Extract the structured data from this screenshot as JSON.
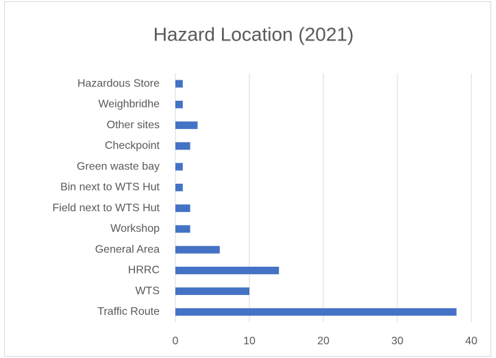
{
  "chart_data": {
    "type": "bar",
    "orientation": "horizontal",
    "title": "Hazard Location (2021)",
    "categories": [
      "Hazardous Store",
      "Weighbridhe",
      "Other sites",
      "Checkpoint",
      "Green waste bay",
      "Bin next to WTS Hut",
      "Field next to WTS Hut",
      "Workshop",
      "General Area",
      "HRRC",
      "WTS",
      "Traffic Route"
    ],
    "values": [
      1,
      1,
      3,
      2,
      1,
      1,
      2,
      2,
      6,
      14,
      10,
      38
    ],
    "color": "#4472c4",
    "xlim": [
      0,
      40
    ],
    "xticks": [
      0,
      10,
      20,
      30,
      40
    ],
    "grid": true
  }
}
